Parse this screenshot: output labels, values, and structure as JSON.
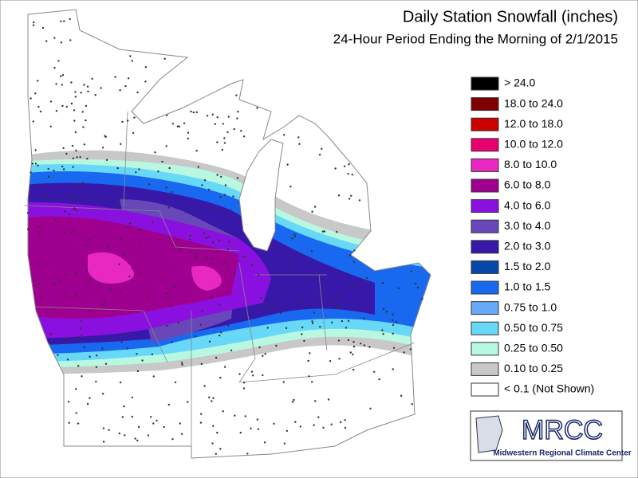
{
  "header": {
    "title": "Daily Station Snowfall (inches)",
    "subtitle": "24-Hour Period Ending the Morning of 2/1/2015"
  },
  "legend": {
    "items": [
      {
        "label": "> 24.0",
        "color": "#000000"
      },
      {
        "label": "18.0 to 24.0",
        "color": "#800000"
      },
      {
        "label": "12.0 to 18.0",
        "color": "#cc0000"
      },
      {
        "label": "10.0 to 12.0",
        "color": "#e8006e"
      },
      {
        "label": "8.0 to 10.0",
        "color": "#e828c0"
      },
      {
        "label": "6.0 to 8.0",
        "color": "#a00090"
      },
      {
        "label": "4.0 to 6.0",
        "color": "#8a10e0"
      },
      {
        "label": "3.0 to 4.0",
        "color": "#6848b8"
      },
      {
        "label": "2.0 to 3.0",
        "color": "#3818a8"
      },
      {
        "label": "1.5 to 2.0",
        "color": "#0848a8"
      },
      {
        "label": "1.0 to 1.5",
        "color": "#1868f0"
      },
      {
        "label": "0.75 to 1.0",
        "color": "#68a8f8"
      },
      {
        "label": "0.50 to 0.75",
        "color": "#68d8f8"
      },
      {
        "label": "0.25 to 0.50",
        "color": "#b8f8e0"
      },
      {
        "label": "0.10 to 0.25",
        "color": "#c8c8c8"
      },
      {
        "label": "< 0.1 (Not Shown)",
        "color": "#ffffff"
      }
    ]
  },
  "logo": {
    "acronym": "MRCC",
    "name": "Midwestern Regional Climate Center"
  }
}
